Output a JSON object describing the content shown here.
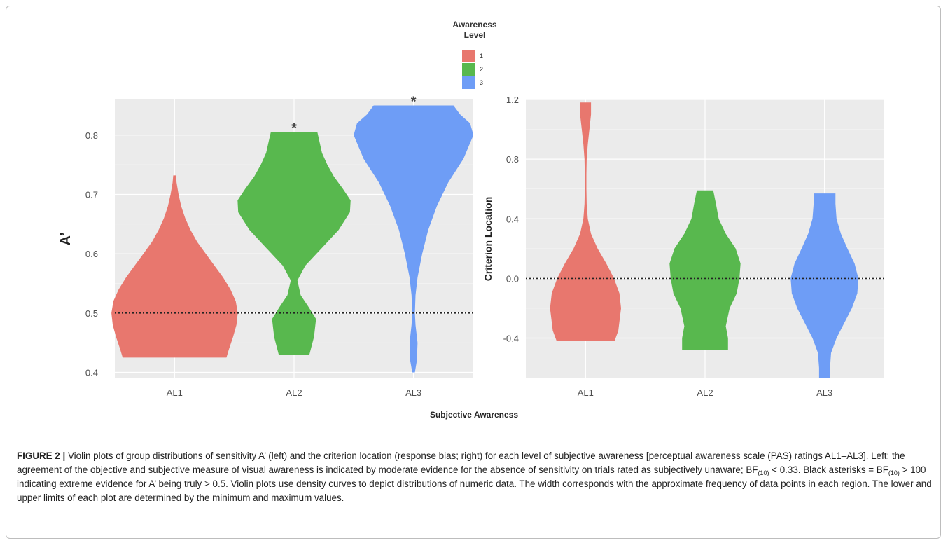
{
  "legend": {
    "title_line1": "Awareness",
    "title_line2": "Level",
    "items": [
      {
        "label": "1",
        "color": "#E8776E"
      },
      {
        "label": "2",
        "color": "#58B84E"
      },
      {
        "label": "3",
        "color": "#6E9DF6"
      }
    ]
  },
  "chart_data": [
    {
      "type": "violin",
      "title": "",
      "ylabel": "A’",
      "xlabel": "Subjective Awareness",
      "categories": [
        "AL1",
        "AL2",
        "AL3"
      ],
      "ylim": [
        0.39,
        0.86
      ],
      "yticks": [
        0.4,
        0.5,
        0.6,
        0.7,
        0.8
      ],
      "reference_line": 0.5,
      "significance_markers": [
        {
          "category": "AL2",
          "label": "*"
        },
        {
          "category": "AL3",
          "label": "*"
        }
      ],
      "series": [
        {
          "category": "AL1",
          "min": 0.425,
          "max": 0.732,
          "density": [
            [
              0.425,
              0.78
            ],
            [
              0.44,
              0.82
            ],
            [
              0.46,
              0.88
            ],
            [
              0.48,
              0.93
            ],
            [
              0.5,
              0.95
            ],
            [
              0.52,
              0.92
            ],
            [
              0.54,
              0.84
            ],
            [
              0.56,
              0.73
            ],
            [
              0.58,
              0.6
            ],
            [
              0.6,
              0.47
            ],
            [
              0.62,
              0.34
            ],
            [
              0.64,
              0.24
            ],
            [
              0.66,
              0.16
            ],
            [
              0.68,
              0.1
            ],
            [
              0.7,
              0.06
            ],
            [
              0.72,
              0.03
            ],
            [
              0.732,
              0.02
            ]
          ]
        },
        {
          "category": "AL2",
          "min": 0.43,
          "max": 0.805,
          "density": [
            [
              0.43,
              0.23
            ],
            [
              0.46,
              0.3
            ],
            [
              0.49,
              0.33
            ],
            [
              0.51,
              0.22
            ],
            [
              0.53,
              0.1
            ],
            [
              0.555,
              0.05
            ],
            [
              0.58,
              0.17
            ],
            [
              0.61,
              0.42
            ],
            [
              0.64,
              0.67
            ],
            [
              0.67,
              0.84
            ],
            [
              0.69,
              0.85
            ],
            [
              0.71,
              0.73
            ],
            [
              0.73,
              0.6
            ],
            [
              0.75,
              0.5
            ],
            [
              0.77,
              0.42
            ],
            [
              0.79,
              0.38
            ],
            [
              0.805,
              0.35
            ]
          ]
        },
        {
          "category": "AL3",
          "min": 0.4,
          "max": 0.85,
          "density": [
            [
              0.4,
              0.02
            ],
            [
              0.42,
              0.05
            ],
            [
              0.45,
              0.06
            ],
            [
              0.48,
              0.03
            ],
            [
              0.5,
              0.02
            ],
            [
              0.53,
              0.03
            ],
            [
              0.56,
              0.06
            ],
            [
              0.6,
              0.13
            ],
            [
              0.64,
              0.22
            ],
            [
              0.68,
              0.35
            ],
            [
              0.72,
              0.52
            ],
            [
              0.76,
              0.75
            ],
            [
              0.8,
              0.9
            ],
            [
              0.82,
              0.85
            ],
            [
              0.835,
              0.7
            ],
            [
              0.85,
              0.6
            ]
          ]
        }
      ]
    },
    {
      "type": "violin",
      "title": "",
      "ylabel": "Criterion Location",
      "xlabel": "Subjective Awareness",
      "categories": [
        "AL1",
        "AL2",
        "AL3"
      ],
      "ylim": [
        -0.67,
        1.2
      ],
      "yticks": [
        -0.4,
        0.0,
        0.4,
        0.8,
        1.2
      ],
      "ytick_labels": [
        "-0.4",
        "0.0",
        "0.4",
        "0.8",
        "1.2"
      ],
      "reference_line": 0.0,
      "series": [
        {
          "category": "AL1",
          "min": -0.42,
          "max": 1.18,
          "density": [
            [
              -0.42,
              0.53
            ],
            [
              -0.35,
              0.6
            ],
            [
              -0.2,
              0.65
            ],
            [
              -0.1,
              0.62
            ],
            [
              0.0,
              0.52
            ],
            [
              0.1,
              0.38
            ],
            [
              0.2,
              0.22
            ],
            [
              0.3,
              0.1
            ],
            [
              0.4,
              0.04
            ],
            [
              0.5,
              0.02
            ],
            [
              0.6,
              0.015
            ],
            [
              0.7,
              0.015
            ],
            [
              0.8,
              0.02
            ],
            [
              0.9,
              0.04
            ],
            [
              1.0,
              0.07
            ],
            [
              1.1,
              0.1
            ],
            [
              1.18,
              0.1
            ]
          ]
        },
        {
          "category": "AL2",
          "min": -0.48,
          "max": 0.59,
          "density": [
            [
              -0.48,
              0.42
            ],
            [
              -0.4,
              0.42
            ],
            [
              -0.32,
              0.38
            ],
            [
              -0.2,
              0.45
            ],
            [
              -0.1,
              0.58
            ],
            [
              0.0,
              0.63
            ],
            [
              0.1,
              0.65
            ],
            [
              0.2,
              0.56
            ],
            [
              0.3,
              0.38
            ],
            [
              0.4,
              0.25
            ],
            [
              0.5,
              0.2
            ],
            [
              0.59,
              0.15
            ]
          ]
        },
        {
          "category": "AL3",
          "min": -0.67,
          "max": 0.57,
          "density": [
            [
              -0.67,
              0.1
            ],
            [
              -0.6,
              0.1
            ],
            [
              -0.5,
              0.12
            ],
            [
              -0.4,
              0.22
            ],
            [
              -0.3,
              0.36
            ],
            [
              -0.2,
              0.5
            ],
            [
              -0.1,
              0.6
            ],
            [
              0.0,
              0.62
            ],
            [
              0.1,
              0.55
            ],
            [
              0.2,
              0.42
            ],
            [
              0.3,
              0.3
            ],
            [
              0.4,
              0.22
            ],
            [
              0.5,
              0.2
            ],
            [
              0.57,
              0.2
            ]
          ]
        }
      ]
    }
  ],
  "caption": {
    "label": "FIGURE 2 |",
    "text_1": " Violin plots of group distributions of sensitivity A’ (left) and the criterion location (response bias; right) for each level of subjective awareness [perceptual awareness scale (PAS) ratings AL1–AL3]. Left: the agreement of the objective and subjective measure of visual awareness is indicated by moderate evidence for the absence of sensitivity on trials rated as subjectively unaware; BF",
    "sub_1": "(10)",
    "text_2": " < 0.33. Black asterisks = BF",
    "sub_2": "(10)",
    "text_3": " > 100 indicating extreme evidence for A’ being truly > 0.5. Violin plots use density curves to depict distributions of numeric data. The width corresponds with the approximate frequency of data points in each region. The lower and upper limits of each plot are determined by the minimum and maximum values."
  }
}
